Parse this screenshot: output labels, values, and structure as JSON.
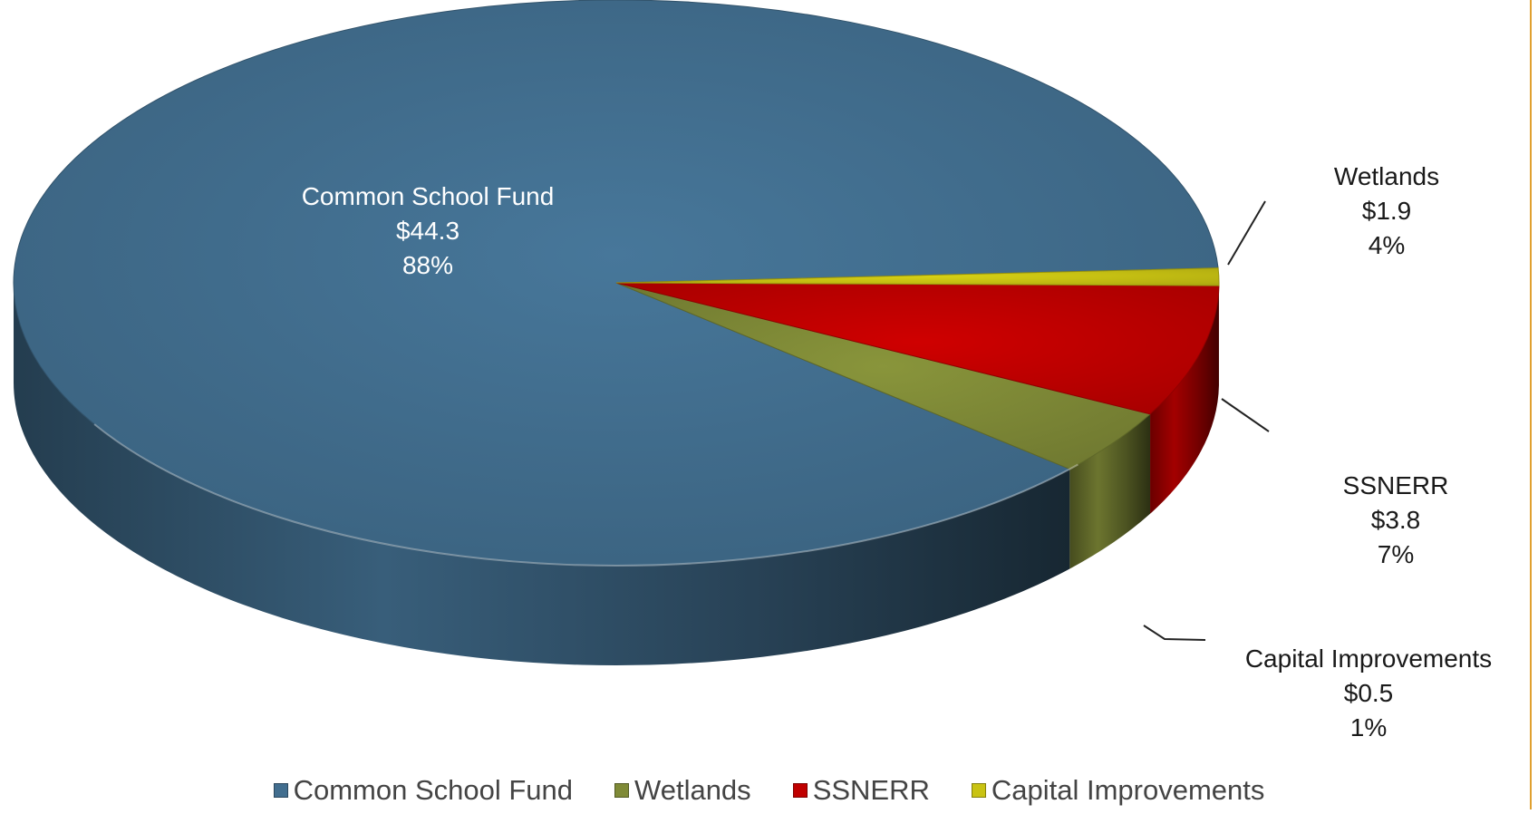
{
  "chart_data": {
    "type": "pie",
    "style": "3d",
    "series": [
      {
        "slices": [
          {
            "label": "Common School Fund",
            "value": 44.3,
            "value_text": "$44.3",
            "percent": 88,
            "percent_text": "88%",
            "color": "#426e8f"
          },
          {
            "label": "Wetlands",
            "value": 1.9,
            "value_text": "$1.9",
            "percent": 4,
            "percent_text": "4%",
            "color": "#7f8a37"
          },
          {
            "label": "SSNERR",
            "value": 3.8,
            "value_text": "$3.8",
            "percent": 7,
            "percent_text": "7%",
            "color": "#c00000"
          },
          {
            "label": "Capital Improvements",
            "value": 0.5,
            "value_text": "$0.5",
            "percent": 1,
            "percent_text": "1%",
            "color": "#c9c313"
          }
        ]
      }
    ],
    "legend_position": "bottom",
    "frame_line_color": "#e0a030"
  }
}
